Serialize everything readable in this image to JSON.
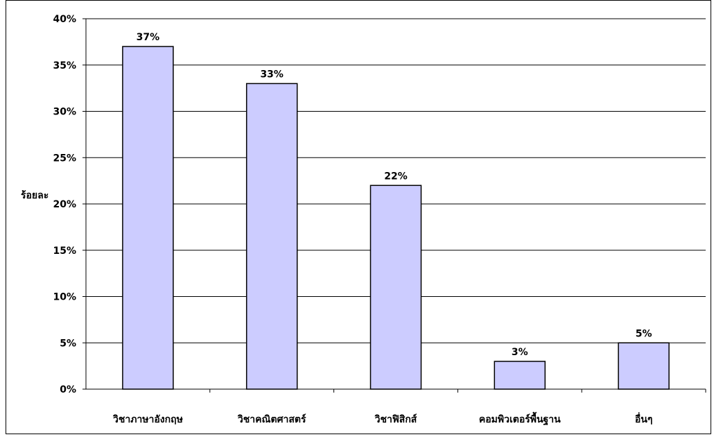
{
  "chart_data": {
    "type": "bar",
    "title": "",
    "xlabel": "",
    "ylabel": "ร้อยละ",
    "categories": [
      "วิชาภาษาอังกฤษ",
      "วิชาคณิตศาสตร์",
      "วิชาฟิสิกส์",
      "คอมพิวเตอร์พื้นฐาน",
      "อื่นๆ"
    ],
    "values": [
      37,
      33,
      22,
      3,
      5
    ],
    "data_labels": [
      "37%",
      "33%",
      "22%",
      "3%",
      "5%"
    ],
    "ylim": [
      0,
      40
    ],
    "yticks": [
      "0%",
      "5%",
      "10%",
      "15%",
      "20%",
      "25%",
      "30%",
      "35%",
      "40%"
    ],
    "grid": true,
    "bar_color": "#ccccff",
    "bar_border_color": "#000000"
  }
}
